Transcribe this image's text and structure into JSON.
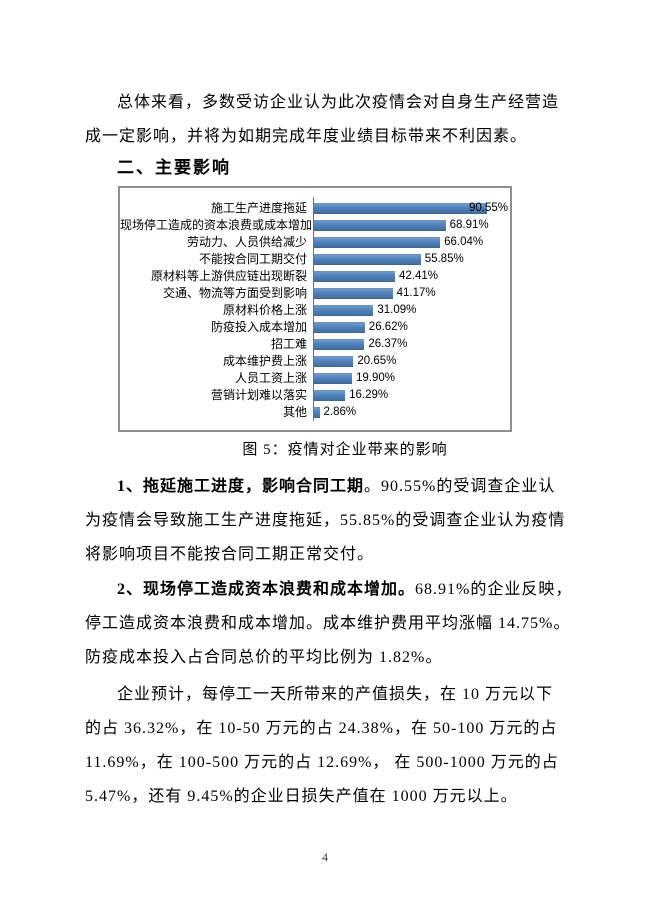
{
  "heading": "二、主要影响",
  "page_number": "4",
  "paragraphs": {
    "intro": {
      "line1": "总体来看，多数受访企业认为此次疫情会对自身生产经营造",
      "line2": "成一定影响，并将为如期完成年度业绩目标带来不利因素。"
    },
    "p1": {
      "lead": "1、拖延施工进度，影响合同工期",
      "line1_rest": "。90.55%的受调查企业认",
      "line2": "为疫情会导致施工生产进度拖延，55.85%的受调查企业认为疫情",
      "line3": "将影响项目不能按合同工期正常交付。"
    },
    "p2": {
      "lead": "2、现场停工造成资本浪费和成本增加。",
      "line1_rest": "68.91%的企业反映，",
      "line2": "停工造成资本浪费和成本增加。成本维护费用平均涨幅 14.75%。",
      "line3": "防疫成本投入占合同总价的平均比例为 1.82%。"
    },
    "p3": {
      "line1": "企业预计，每停工一天所带来的产值损失，在 10 万元以下",
      "line2": "的占 36.32%，在 10-50 万元的占 24.38%，在 50-100 万元的占",
      "line3": "11.69%，在 100-500 万元的占 12.69%， 在 500-1000 万元的占",
      "line4": "5.47%，还有 9.45%的企业日损失产值在 1000 万元以上。"
    }
  },
  "chart_data": {
    "type": "bar",
    "orientation": "horizontal",
    "title": "图 5：疫情对企业带来的影响",
    "categories": [
      "施工生产进度拖延",
      "现场停工造成的资本浪费或成本增加",
      "劳动力、人员供给减少",
      "不能按合同工期交付",
      "原材料等上游供应链出现断裂",
      "交通、物流等方面受到影响",
      "原材料价格上涨",
      "防疫投入成本增加",
      "招工难",
      "成本维护费上涨",
      "人员工资上涨",
      "营销计划难以落实",
      "其他"
    ],
    "values": [
      90.55,
      68.91,
      66.04,
      55.85,
      42.41,
      41.17,
      31.09,
      26.62,
      26.37,
      20.65,
      19.9,
      16.29,
      2.86
    ],
    "value_labels": [
      "90.55%",
      "68.91%",
      "66.04%",
      "55.85%",
      "42.41%",
      "41.17%",
      "31.09%",
      "26.62%",
      "26.37%",
      "20.65%",
      "19.90%",
      "16.29%",
      "2.86%"
    ],
    "xlabel": "",
    "ylabel": "",
    "xlim": [
      0,
      100
    ],
    "grid": false,
    "legend": false,
    "bar_color": "#4f81bd",
    "data_labels": true
  }
}
